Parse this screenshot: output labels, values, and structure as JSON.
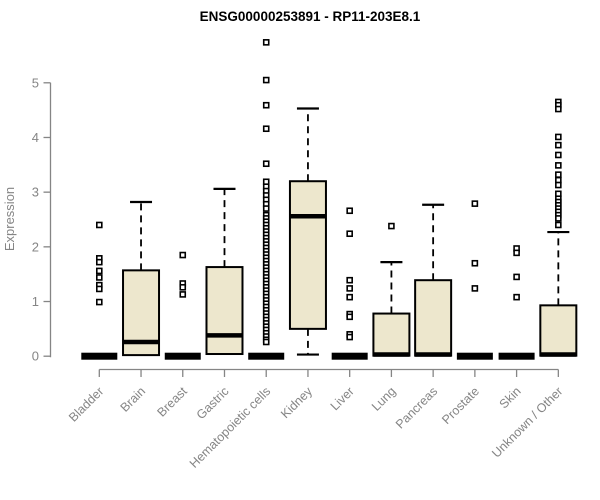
{
  "chart_data": {
    "type": "boxplot",
    "title": "ENSG00000253891 - RP11-203E8.1",
    "ylabel": "Expression",
    "xlabel": "",
    "ylim": [
      0,
      5.9
    ],
    "yticks": [
      0,
      1,
      2,
      3,
      4,
      5
    ],
    "grid": false,
    "legend": "none",
    "box_fill": "#EDE7CD",
    "box_stroke": "#000000",
    "median_color": "#000000",
    "axis_color": "#858585",
    "tick_label_color": "#858585",
    "title_color": "#000000",
    "categories": [
      {
        "label": "Bladder",
        "q1": 0,
        "median": 0,
        "q3": 0,
        "whisker_low": 0,
        "whisker_high": 0,
        "outliers": [
          2.4,
          1.79,
          1.72,
          1.56,
          1.44,
          1.3,
          1.23,
          0.99
        ]
      },
      {
        "label": "Brain",
        "q1": 0.02,
        "median": 0.26,
        "q3": 1.57,
        "whisker_low": 0.02,
        "whisker_high": 2.82,
        "outliers": []
      },
      {
        "label": "Breast",
        "q1": 0,
        "median": 0,
        "q3": 0,
        "whisker_low": 0,
        "whisker_high": 0,
        "outliers": [
          1.85,
          1.33,
          1.26,
          1.13
        ]
      },
      {
        "label": "Gastric",
        "q1": 0.04,
        "median": 0.38,
        "q3": 1.63,
        "whisker_low": 0.04,
        "whisker_high": 3.06,
        "outliers": []
      },
      {
        "label": "Hematopoietic cells",
        "q1": 0,
        "median": 0,
        "q3": 0,
        "whisker_low": 0,
        "whisker_high": 0,
        "outliers": [
          5.74,
          5.05,
          4.59,
          4.16,
          3.52,
          3.19,
          3.1,
          3.02,
          2.94,
          2.86,
          2.78,
          2.7,
          2.58,
          2.52,
          2.46,
          2.4,
          2.34,
          2.28,
          2.22,
          2.16,
          2.1,
          2.04,
          1.98,
          1.92,
          1.86,
          1.8,
          1.74,
          1.68,
          1.62,
          1.56,
          1.5,
          1.44,
          1.38,
          1.32,
          1.26,
          1.2,
          1.14,
          1.08,
          1.02,
          0.96,
          0.9,
          0.84,
          0.78,
          0.72,
          0.66,
          0.6,
          0.54,
          0.48,
          0.42,
          0.36,
          0.3,
          0.26
        ]
      },
      {
        "label": "Kidney",
        "q1": 0.5,
        "median": 2.56,
        "q3": 3.2,
        "whisker_low": 0.03,
        "whisker_high": 4.53,
        "outliers": []
      },
      {
        "label": "Liver",
        "q1": 0,
        "median": 0,
        "q3": 0,
        "whisker_low": 0,
        "whisker_high": 0,
        "outliers": [
          2.66,
          2.24,
          1.39,
          1.24,
          1.08,
          0.77,
          0.72,
          0.4,
          0.35
        ]
      },
      {
        "label": "Lung",
        "q1": 0.01,
        "median": 0.03,
        "q3": 0.78,
        "whisker_low": 0.01,
        "whisker_high": 1.72,
        "outliers": [
          2.38
        ]
      },
      {
        "label": "Pancreas",
        "q1": 0.01,
        "median": 0.03,
        "q3": 1.39,
        "whisker_low": 0.01,
        "whisker_high": 2.77,
        "outliers": []
      },
      {
        "label": "Prostate",
        "q1": 0,
        "median": 0,
        "q3": 0,
        "whisker_low": 0,
        "whisker_high": 0,
        "outliers": [
          2.79,
          1.7,
          1.24
        ]
      },
      {
        "label": "Skin",
        "q1": 0,
        "median": 0,
        "q3": 0,
        "whisker_low": 0,
        "whisker_high": 0,
        "outliers": [
          1.97,
          1.89,
          1.45,
          1.08
        ]
      },
      {
        "label": "Unknown / Other",
        "q1": 0.01,
        "median": 0.03,
        "q3": 0.93,
        "whisker_low": 0.01,
        "whisker_high": 2.27,
        "outliers": [
          4.65,
          4.59,
          4.52,
          4.01,
          3.86,
          3.68,
          3.49,
          3.32,
          3.22,
          3.13,
          2.97,
          2.88,
          2.82,
          2.76,
          2.7,
          2.64,
          2.58,
          2.52,
          2.4
        ]
      }
    ]
  }
}
